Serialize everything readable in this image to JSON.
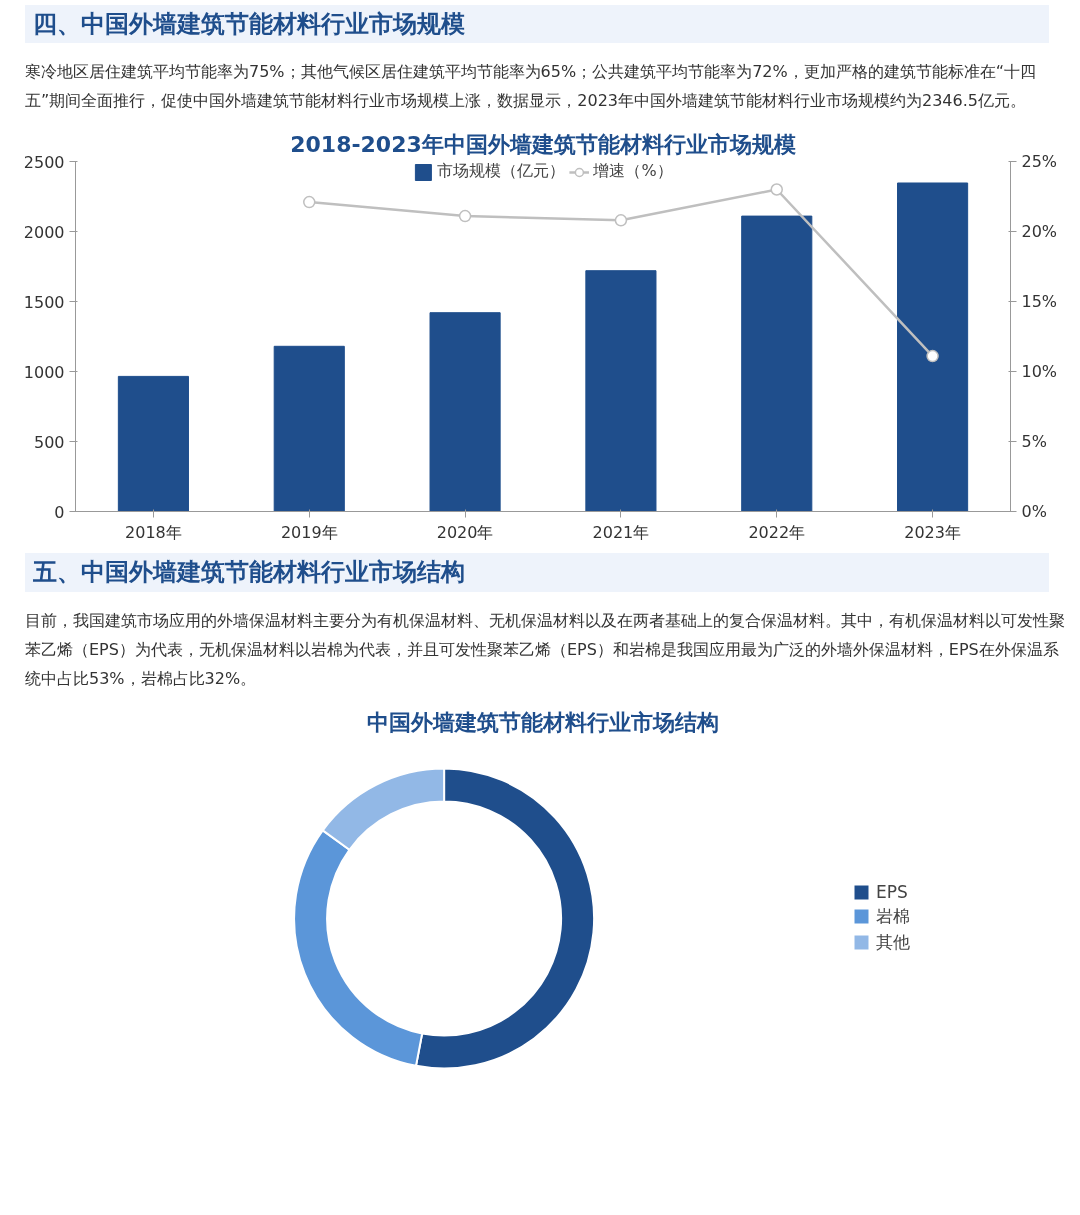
{
  "chart_data": [
    {
      "type": "bar",
      "title": "2018-2023年中国外墙建筑节能材料行业市场规模",
      "annotations": [
        "四、中国外墙建筑节能材料行业市场规模",
        "寒冷地区居住建筑平均节能率为75%；其他气候区居住建筑平均节能率为65%；公共建筑平均节能率为72%，更加严格的建筑节能标准在“十四五”期间全面推行，促使中国外墙建筑节能材料行业市场规模上涨，数据显示，2023年中国外墙建筑节能材料行业市场规模约为2346.5亿元。"
      ],
      "categories": [
        "2018年",
        "2019年",
        "2020年",
        "2021年",
        "2022年",
        "2023年"
      ],
      "series": [
        {
          "name": "市场规模（亿元）",
          "type": "bar",
          "color": "#1f4e8c",
          "values": [
            965,
            1180,
            1420,
            1720,
            2110,
            2346.5
          ]
        },
        {
          "name": "增速（%）",
          "type": "line",
          "axis": "y2",
          "color": "#bfbfbf",
          "marker": "circle",
          "values": [
            null,
            22.1,
            21.1,
            20.8,
            23.0,
            11.1
          ]
        }
      ],
      "ylim": [
        0,
        2500
      ],
      "yticks": [
        0,
        500,
        1000,
        1500,
        2000,
        2500
      ],
      "y2lim": [
        0,
        25
      ],
      "y2ticks": [
        {
          "value": 0,
          "label": "0%"
        },
        {
          "value": 5,
          "label": "5%"
        },
        {
          "value": 10,
          "label": "10%"
        },
        {
          "value": 15,
          "label": "15%"
        },
        {
          "value": 20,
          "label": "20%"
        },
        {
          "value": 25,
          "label": "25%"
        }
      ],
      "legend": "top"
    },
    {
      "type": "donut",
      "title": "中国外墙建筑节能材料行业市场结构",
      "annotations": [
        "五、中国外墙建筑节能材料行业市场结构",
        "目前，我国建筑市场应用的外墙保温材料主要分为有机保温材料、无机保温材料以及在两者基础上的复合保温材料。其中，有机保温材料以可发性聚苯乙烯（EPS）为代表，无机保温材料以岩棉为代表，并且可发性聚苯乙烯（EPS）和岩棉是我国应用最为广泛的外墙外保温材料，EPS在外保温系统中占比53%，岩棉占比32%。"
      ],
      "categories": [
        "EPS",
        "岩棉",
        "其他"
      ],
      "values": [
        53,
        32,
        15
      ],
      "colors": [
        "#1f4e8c",
        "#5b96d9",
        "#92b8e6"
      ],
      "legend": "right"
    }
  ]
}
